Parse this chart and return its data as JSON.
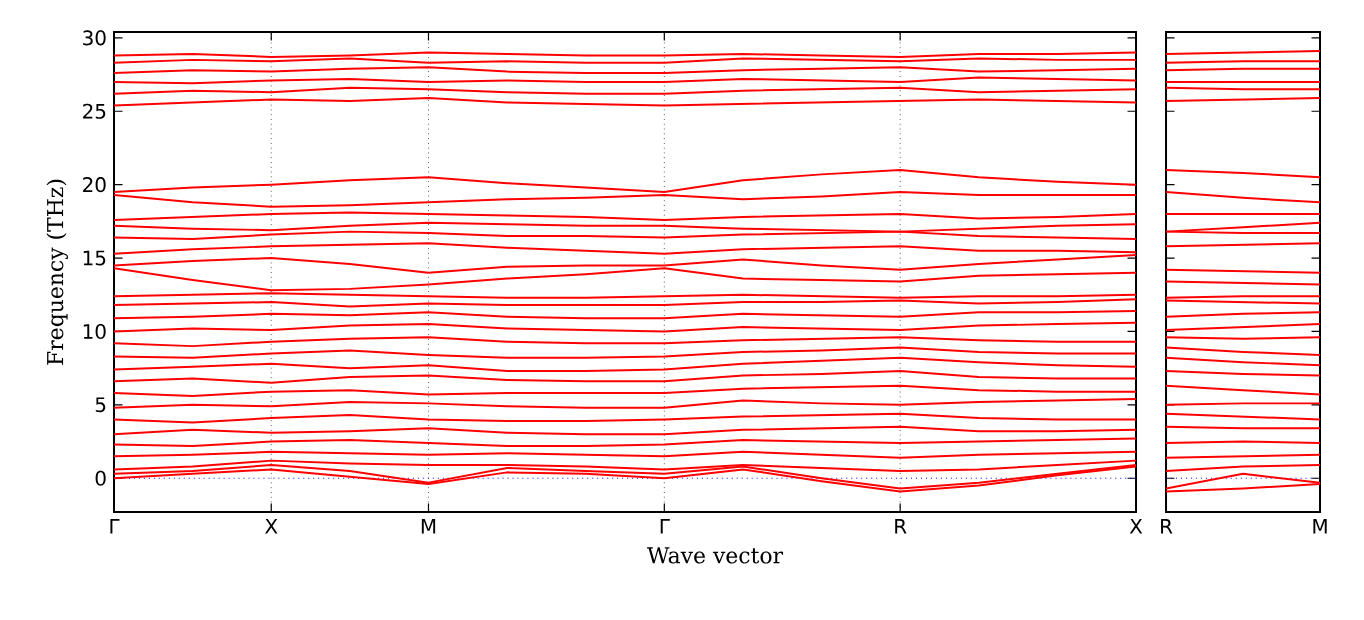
{
  "chart_data": [
    {
      "type": "line",
      "xlabel": "Wave vector",
      "ylabel": "Frequency (THz)",
      "grid": "x",
      "ylim": [
        -2.3,
        30.4
      ],
      "categories": [
        "Γ",
        null,
        "X",
        null,
        "M",
        null,
        null,
        "Γ",
        null,
        null,
        "R",
        null,
        null,
        "X"
      ],
      "yticks": [
        0,
        5,
        10,
        15,
        20,
        25,
        30
      ],
      "ref_lines": [
        {
          "axis": "y",
          "value": 0,
          "color": "#0000ff",
          "line_style": "dotted"
        }
      ],
      "series": [
        {
          "color": "#ff0000",
          "values": [
            0,
            0.3,
            0.6,
            0.1,
            -0.4,
            0.4,
            0.3,
            0,
            0.6,
            -0.2,
            -0.9,
            -0.5,
            0.2,
            0.8
          ]
        },
        {
          "color": "#ff0000",
          "values": [
            0.3,
            0.5,
            0.9,
            0.5,
            -0.3,
            0.7,
            0.5,
            0.3,
            0.8,
            0,
            -0.7,
            -0.3,
            0.3,
            0.9
          ]
        },
        {
          "color": "#ff0000",
          "values": [
            0.6,
            0.8,
            1.2,
            1.0,
            0.9,
            0.9,
            0.8,
            0.6,
            0.9,
            0.7,
            0.5,
            0.6,
            0.9,
            1.2
          ]
        },
        {
          "color": "#ff0000",
          "values": [
            1.5,
            1.6,
            1.8,
            1.7,
            1.6,
            1.7,
            1.6,
            1.5,
            1.8,
            1.6,
            1.4,
            1.6,
            1.7,
            1.8
          ]
        },
        {
          "color": "#ff0000",
          "values": [
            2.3,
            2.2,
            2.5,
            2.6,
            2.4,
            2.2,
            2.2,
            2.3,
            2.6,
            2.5,
            2.4,
            2.5,
            2.6,
            2.7
          ]
        },
        {
          "color": "#ff0000",
          "values": [
            3.0,
            3.3,
            3.1,
            3.2,
            3.4,
            3.1,
            3.0,
            3.0,
            3.3,
            3.4,
            3.5,
            3.2,
            3.2,
            3.3
          ]
        },
        {
          "color": "#ff0000",
          "values": [
            4.0,
            3.8,
            4.1,
            4.3,
            4.0,
            3.9,
            3.9,
            4.0,
            4.2,
            4.3,
            4.4,
            4.1,
            4.0,
            4.0
          ]
        },
        {
          "color": "#ff0000",
          "values": [
            4.8,
            5.0,
            4.9,
            5.2,
            5.1,
            4.9,
            4.8,
            4.8,
            5.3,
            5.1,
            5.0,
            5.2,
            5.3,
            5.4
          ]
        },
        {
          "color": "#ff0000",
          "values": [
            5.8,
            5.6,
            5.9,
            6.0,
            5.7,
            5.8,
            5.8,
            5.8,
            6.1,
            6.2,
            6.3,
            6.0,
            5.9,
            5.9
          ]
        },
        {
          "color": "#ff0000",
          "values": [
            6.6,
            6.8,
            6.5,
            6.9,
            7.0,
            6.7,
            6.6,
            6.6,
            7.0,
            7.1,
            7.3,
            6.9,
            6.8,
            6.8
          ]
        },
        {
          "color": "#ff0000",
          "values": [
            7.4,
            7.6,
            7.8,
            7.5,
            7.7,
            7.3,
            7.3,
            7.4,
            7.8,
            8.0,
            8.2,
            7.9,
            7.7,
            7.6
          ]
        },
        {
          "color": "#ff0000",
          "values": [
            8.3,
            8.2,
            8.5,
            8.7,
            8.4,
            8.2,
            8.2,
            8.3,
            8.6,
            8.7,
            8.9,
            8.6,
            8.5,
            8.5
          ]
        },
        {
          "color": "#ff0000",
          "values": [
            9.2,
            9.0,
            9.3,
            9.5,
            9.6,
            9.3,
            9.2,
            9.2,
            9.4,
            9.5,
            9.6,
            9.4,
            9.3,
            9.3
          ]
        },
        {
          "color": "#ff0000",
          "values": [
            10.0,
            10.2,
            10.1,
            10.4,
            10.5,
            10.2,
            10.1,
            10.0,
            10.3,
            10.2,
            10.1,
            10.4,
            10.5,
            10.6
          ]
        },
        {
          "color": "#ff0000",
          "values": [
            10.9,
            11.0,
            11.2,
            11.1,
            11.3,
            11.0,
            10.9,
            10.9,
            11.2,
            11.1,
            11.0,
            11.3,
            11.3,
            11.4
          ]
        },
        {
          "color": "#ff0000",
          "values": [
            11.8,
            11.9,
            12.0,
            11.7,
            11.9,
            11.8,
            11.8,
            11.8,
            12.0,
            12.0,
            12.1,
            11.9,
            12.0,
            12.2
          ]
        },
        {
          "color": "#ff0000",
          "values": [
            12.4,
            12.5,
            12.6,
            12.5,
            12.4,
            12.3,
            12.3,
            12.4,
            12.5,
            12.4,
            12.3,
            12.4,
            12.4,
            12.5
          ]
        },
        {
          "color": "#ff0000",
          "values": [
            14.3,
            13.5,
            12.8,
            12.9,
            13.2,
            13.6,
            13.9,
            14.3,
            13.6,
            13.5,
            13.4,
            13.8,
            13.9,
            14.0
          ]
        },
        {
          "color": "#ff0000",
          "values": [
            14.5,
            14.8,
            15.0,
            14.6,
            14.0,
            14.4,
            14.5,
            14.5,
            14.9,
            14.5,
            14.2,
            14.6,
            14.9,
            15.2
          ]
        },
        {
          "color": "#ff0000",
          "values": [
            15.3,
            15.6,
            15.8,
            15.9,
            16.0,
            15.7,
            15.5,
            15.3,
            15.6,
            15.7,
            15.8,
            15.5,
            15.5,
            15.4
          ]
        },
        {
          "color": "#ff0000",
          "values": [
            16.4,
            16.3,
            16.6,
            16.8,
            16.7,
            16.5,
            16.5,
            16.4,
            16.6,
            16.7,
            16.8,
            16.5,
            16.4,
            16.3
          ]
        },
        {
          "color": "#ff0000",
          "values": [
            17.2,
            17.0,
            16.9,
            17.2,
            17.4,
            17.3,
            17.2,
            17.2,
            17.0,
            16.9,
            16.8,
            17.0,
            17.2,
            17.3
          ]
        },
        {
          "color": "#ff0000",
          "values": [
            17.6,
            17.8,
            18.0,
            18.1,
            18.0,
            17.9,
            17.8,
            17.6,
            17.8,
            17.9,
            18.0,
            17.7,
            17.8,
            18.0
          ]
        },
        {
          "color": "#ff0000",
          "values": [
            19.3,
            18.8,
            18.5,
            18.6,
            18.8,
            19.0,
            19.1,
            19.3,
            19.0,
            19.2,
            19.5,
            19.3,
            19.3,
            19.3
          ]
        },
        {
          "color": "#ff0000",
          "values": [
            19.5,
            19.8,
            20.0,
            20.3,
            20.5,
            20.1,
            19.8,
            19.5,
            20.3,
            20.7,
            21.0,
            20.5,
            20.2,
            20.0
          ]
        },
        {
          "color": "#ff0000",
          "values": [
            25.4,
            25.6,
            25.8,
            25.7,
            25.9,
            25.6,
            25.5,
            25.4,
            25.5,
            25.6,
            25.7,
            25.8,
            25.7,
            25.6
          ]
        },
        {
          "color": "#ff0000",
          "values": [
            26.2,
            26.4,
            26.3,
            26.6,
            26.5,
            26.3,
            26.2,
            26.2,
            26.4,
            26.5,
            26.6,
            26.3,
            26.4,
            26.5
          ]
        },
        {
          "color": "#ff0000",
          "values": [
            27.0,
            26.9,
            27.1,
            27.2,
            27.0,
            27.1,
            27.0,
            27.0,
            27.2,
            27.1,
            27.0,
            27.3,
            27.2,
            27.1
          ]
        },
        {
          "color": "#ff0000",
          "values": [
            27.6,
            27.8,
            27.7,
            27.9,
            28.0,
            27.7,
            27.6,
            27.6,
            27.8,
            27.9,
            28.0,
            27.7,
            27.8,
            27.9
          ]
        },
        {
          "color": "#ff0000",
          "values": [
            28.3,
            28.5,
            28.4,
            28.6,
            28.3,
            28.4,
            28.3,
            28.3,
            28.6,
            28.5,
            28.4,
            28.6,
            28.5,
            28.5
          ]
        },
        {
          "color": "#ff0000",
          "values": [
            28.8,
            28.9,
            28.7,
            28.8,
            29.0,
            28.9,
            28.8,
            28.8,
            28.9,
            28.8,
            28.7,
            28.9,
            28.9,
            29.0
          ]
        }
      ]
    },
    {
      "type": "line",
      "tick_labels": "x",
      "ylim": [
        -2.3,
        30.4
      ],
      "categories": [
        "R",
        null,
        "M"
      ],
      "yticks": [
        0,
        5,
        10,
        15,
        20,
        25,
        30
      ],
      "ref_lines": [
        {
          "axis": "y",
          "value": 0,
          "color": "#0000ff",
          "line_style": "dotted"
        }
      ],
      "series": [
        {
          "color": "#ff0000",
          "values": [
            -0.9,
            -0.7,
            -0.4
          ]
        },
        {
          "color": "#ff0000",
          "values": [
            -0.7,
            0.3,
            -0.3
          ]
        },
        {
          "color": "#ff0000",
          "values": [
            0.5,
            0.8,
            0.9
          ]
        },
        {
          "color": "#ff0000",
          "values": [
            1.4,
            1.5,
            1.6
          ]
        },
        {
          "color": "#ff0000",
          "values": [
            2.4,
            2.5,
            2.4
          ]
        },
        {
          "color": "#ff0000",
          "values": [
            3.5,
            3.4,
            3.4
          ]
        },
        {
          "color": "#ff0000",
          "values": [
            4.4,
            4.2,
            4.0
          ]
        },
        {
          "color": "#ff0000",
          "values": [
            5.0,
            5.1,
            5.1
          ]
        },
        {
          "color": "#ff0000",
          "values": [
            6.3,
            6.0,
            5.7
          ]
        },
        {
          "color": "#ff0000",
          "values": [
            7.3,
            7.1,
            7.0
          ]
        },
        {
          "color": "#ff0000",
          "values": [
            8.2,
            7.9,
            7.7
          ]
        },
        {
          "color": "#ff0000",
          "values": [
            8.9,
            8.6,
            8.4
          ]
        },
        {
          "color": "#ff0000",
          "values": [
            9.6,
            9.5,
            9.6
          ]
        },
        {
          "color": "#ff0000",
          "values": [
            10.1,
            10.3,
            10.5
          ]
        },
        {
          "color": "#ff0000",
          "values": [
            11.0,
            11.2,
            11.3
          ]
        },
        {
          "color": "#ff0000",
          "values": [
            12.1,
            12.0,
            11.9
          ]
        },
        {
          "color": "#ff0000",
          "values": [
            12.3,
            12.4,
            12.4
          ]
        },
        {
          "color": "#ff0000",
          "values": [
            13.4,
            13.3,
            13.2
          ]
        },
        {
          "color": "#ff0000",
          "values": [
            14.2,
            14.1,
            14.0
          ]
        },
        {
          "color": "#ff0000",
          "values": [
            15.8,
            15.9,
            16.0
          ]
        },
        {
          "color": "#ff0000",
          "values": [
            16.8,
            16.7,
            16.7
          ]
        },
        {
          "color": "#ff0000",
          "values": [
            16.8,
            17.1,
            17.4
          ]
        },
        {
          "color": "#ff0000",
          "values": [
            18.0,
            18.0,
            18.0
          ]
        },
        {
          "color": "#ff0000",
          "values": [
            19.5,
            19.1,
            18.8
          ]
        },
        {
          "color": "#ff0000",
          "values": [
            21.0,
            20.8,
            20.5
          ]
        },
        {
          "color": "#ff0000",
          "values": [
            25.7,
            25.8,
            25.9
          ]
        },
        {
          "color": "#ff0000",
          "values": [
            26.6,
            26.5,
            26.5
          ]
        },
        {
          "color": "#ff0000",
          "values": [
            27.0,
            27.0,
            27.0
          ]
        },
        {
          "color": "#ff0000",
          "values": [
            27.8,
            27.9,
            27.9
          ]
        },
        {
          "color": "#ff0000",
          "values": [
            28.3,
            28.4,
            28.4
          ]
        },
        {
          "color": "#ff0000",
          "values": [
            28.9,
            29.0,
            29.1
          ]
        }
      ]
    }
  ]
}
